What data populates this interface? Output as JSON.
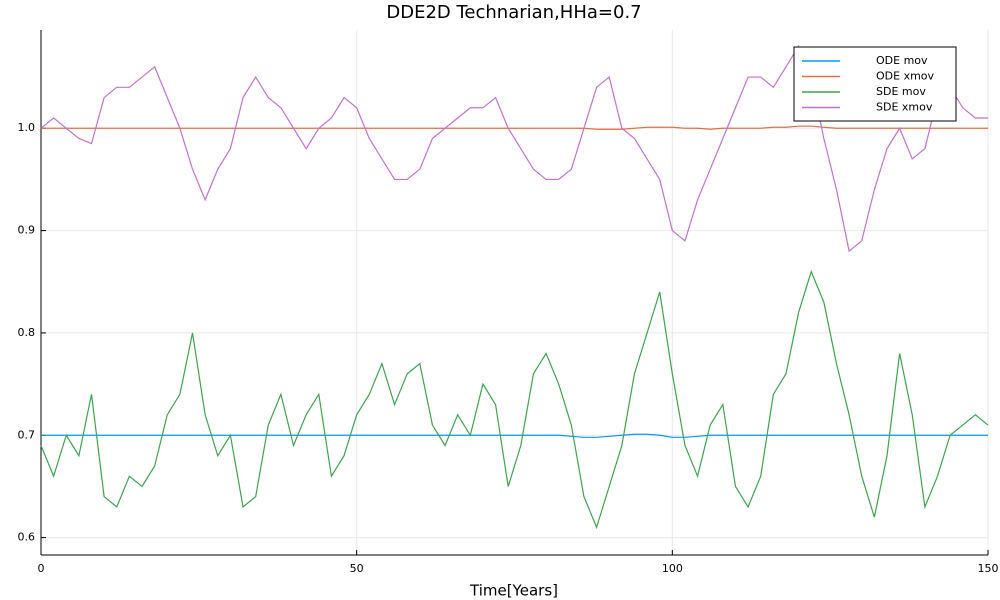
{
  "chart_data": {
    "type": "line",
    "title": "DDE2D Technarian,HHa=0.7",
    "xlabel": "Time[Years]",
    "x": [
      0,
      2,
      4,
      6,
      8,
      10,
      12,
      14,
      16,
      18,
      20,
      22,
      24,
      26,
      28,
      30,
      32,
      34,
      36,
      38,
      40,
      42,
      44,
      46,
      48,
      50,
      52,
      54,
      56,
      58,
      60,
      62,
      64,
      66,
      68,
      70,
      72,
      74,
      76,
      78,
      80,
      82,
      84,
      86,
      88,
      90,
      92,
      94,
      96,
      98,
      100,
      102,
      104,
      106,
      108,
      110,
      112,
      114,
      116,
      118,
      120,
      122,
      124,
      126,
      128,
      130,
      132,
      134,
      136,
      138,
      140,
      142,
      144,
      146,
      148,
      150
    ],
    "series": [
      {
        "name": "ODE mov",
        "color": "#009af9",
        "values": [
          0.7,
          0.7,
          0.7,
          0.7,
          0.7,
          0.7,
          0.7,
          0.7,
          0.7,
          0.7,
          0.7,
          0.7,
          0.7,
          0.7,
          0.7,
          0.7,
          0.7,
          0.7,
          0.7,
          0.7,
          0.7,
          0.7,
          0.7,
          0.7,
          0.7,
          0.7,
          0.7,
          0.7,
          0.7,
          0.7,
          0.7,
          0.7,
          0.7,
          0.7,
          0.7,
          0.7,
          0.7,
          0.7,
          0.7,
          0.7,
          0.7,
          0.7,
          0.699,
          0.698,
          0.698,
          0.699,
          0.7,
          0.701,
          0.701,
          0.7,
          0.698,
          0.698,
          0.699,
          0.7,
          0.7,
          0.7,
          0.7,
          0.7,
          0.7,
          0.7,
          0.7,
          0.7,
          0.7,
          0.7,
          0.7,
          0.7,
          0.7,
          0.7,
          0.7,
          0.7,
          0.7,
          0.7,
          0.7,
          0.7,
          0.7,
          0.7
        ]
      },
      {
        "name": "ODE xmov",
        "color": "#e26f46",
        "values": [
          1.0,
          1.0,
          1.0,
          1.0,
          1.0,
          1.0,
          1.0,
          1.0,
          1.0,
          1.0,
          1.0,
          1.0,
          1.0,
          1.0,
          1.0,
          1.0,
          1.0,
          1.0,
          1.0,
          1.0,
          1.0,
          1.0,
          1.0,
          1.0,
          1.0,
          1.0,
          1.0,
          1.0,
          1.0,
          1.0,
          1.0,
          1.0,
          1.0,
          1.0,
          1.0,
          1.0,
          1.0,
          1.0,
          1.0,
          1.0,
          1.0,
          1.0,
          1.0,
          1.0,
          0.999,
          0.999,
          0.999,
          1.0,
          1.001,
          1.001,
          1.001,
          1.0,
          1.0,
          0.999,
          1.0,
          1.0,
          1.0,
          1.0,
          1.001,
          1.001,
          1.002,
          1.002,
          1.001,
          1.0,
          1.0,
          1.0,
          1.0,
          1.0,
          1.0,
          1.0,
          1.0,
          1.0,
          1.0,
          1.0,
          1.0,
          1.0
        ]
      },
      {
        "name": "SDE mov",
        "color": "#3da44d",
        "values": [
          0.69,
          0.66,
          0.7,
          0.68,
          0.74,
          0.64,
          0.63,
          0.66,
          0.65,
          0.67,
          0.72,
          0.74,
          0.8,
          0.72,
          0.68,
          0.7,
          0.63,
          0.64,
          0.71,
          0.74,
          0.69,
          0.72,
          0.74,
          0.66,
          0.68,
          0.72,
          0.74,
          0.77,
          0.73,
          0.76,
          0.77,
          0.71,
          0.69,
          0.72,
          0.7,
          0.75,
          0.73,
          0.65,
          0.69,
          0.76,
          0.78,
          0.75,
          0.71,
          0.64,
          0.61,
          0.65,
          0.69,
          0.76,
          0.8,
          0.84,
          0.76,
          0.69,
          0.66,
          0.71,
          0.73,
          0.65,
          0.63,
          0.66,
          0.74,
          0.76,
          0.82,
          0.86,
          0.83,
          0.77,
          0.72,
          0.66,
          0.62,
          0.68,
          0.78,
          0.72,
          0.63,
          0.66,
          0.7,
          0.71,
          0.72,
          0.71
        ]
      },
      {
        "name": "SDE xmov",
        "color": "#c271d2",
        "values": [
          1.0,
          1.01,
          1.0,
          0.99,
          0.985,
          1.03,
          1.04,
          1.04,
          1.05,
          1.06,
          1.03,
          1.0,
          0.96,
          0.93,
          0.96,
          0.98,
          1.03,
          1.05,
          1.03,
          1.02,
          1.0,
          0.98,
          1.0,
          1.01,
          1.03,
          1.02,
          0.99,
          0.97,
          0.95,
          0.95,
          0.96,
          0.99,
          1.0,
          1.01,
          1.02,
          1.02,
          1.03,
          1.0,
          0.98,
          0.96,
          0.95,
          0.95,
          0.96,
          1.0,
          1.04,
          1.05,
          1.0,
          0.99,
          0.97,
          0.95,
          0.9,
          0.89,
          0.93,
          0.96,
          0.99,
          1.02,
          1.05,
          1.05,
          1.04,
          1.06,
          1.08,
          1.05,
          0.99,
          0.94,
          0.88,
          0.89,
          0.94,
          0.98,
          1.0,
          0.97,
          0.98,
          1.03,
          1.04,
          1.02,
          1.01,
          1.01
        ]
      }
    ],
    "xlim": [
      0,
      150
    ],
    "xticks": [
      0,
      50,
      100,
      150
    ],
    "ylim": [
      0.583,
      1.096
    ],
    "yticks": [
      0.6,
      0.7,
      0.8,
      0.9,
      {
        "value": 1.0,
        "label": "1.0"
      }
    ],
    "grid": true,
    "legend": "top-right"
  }
}
